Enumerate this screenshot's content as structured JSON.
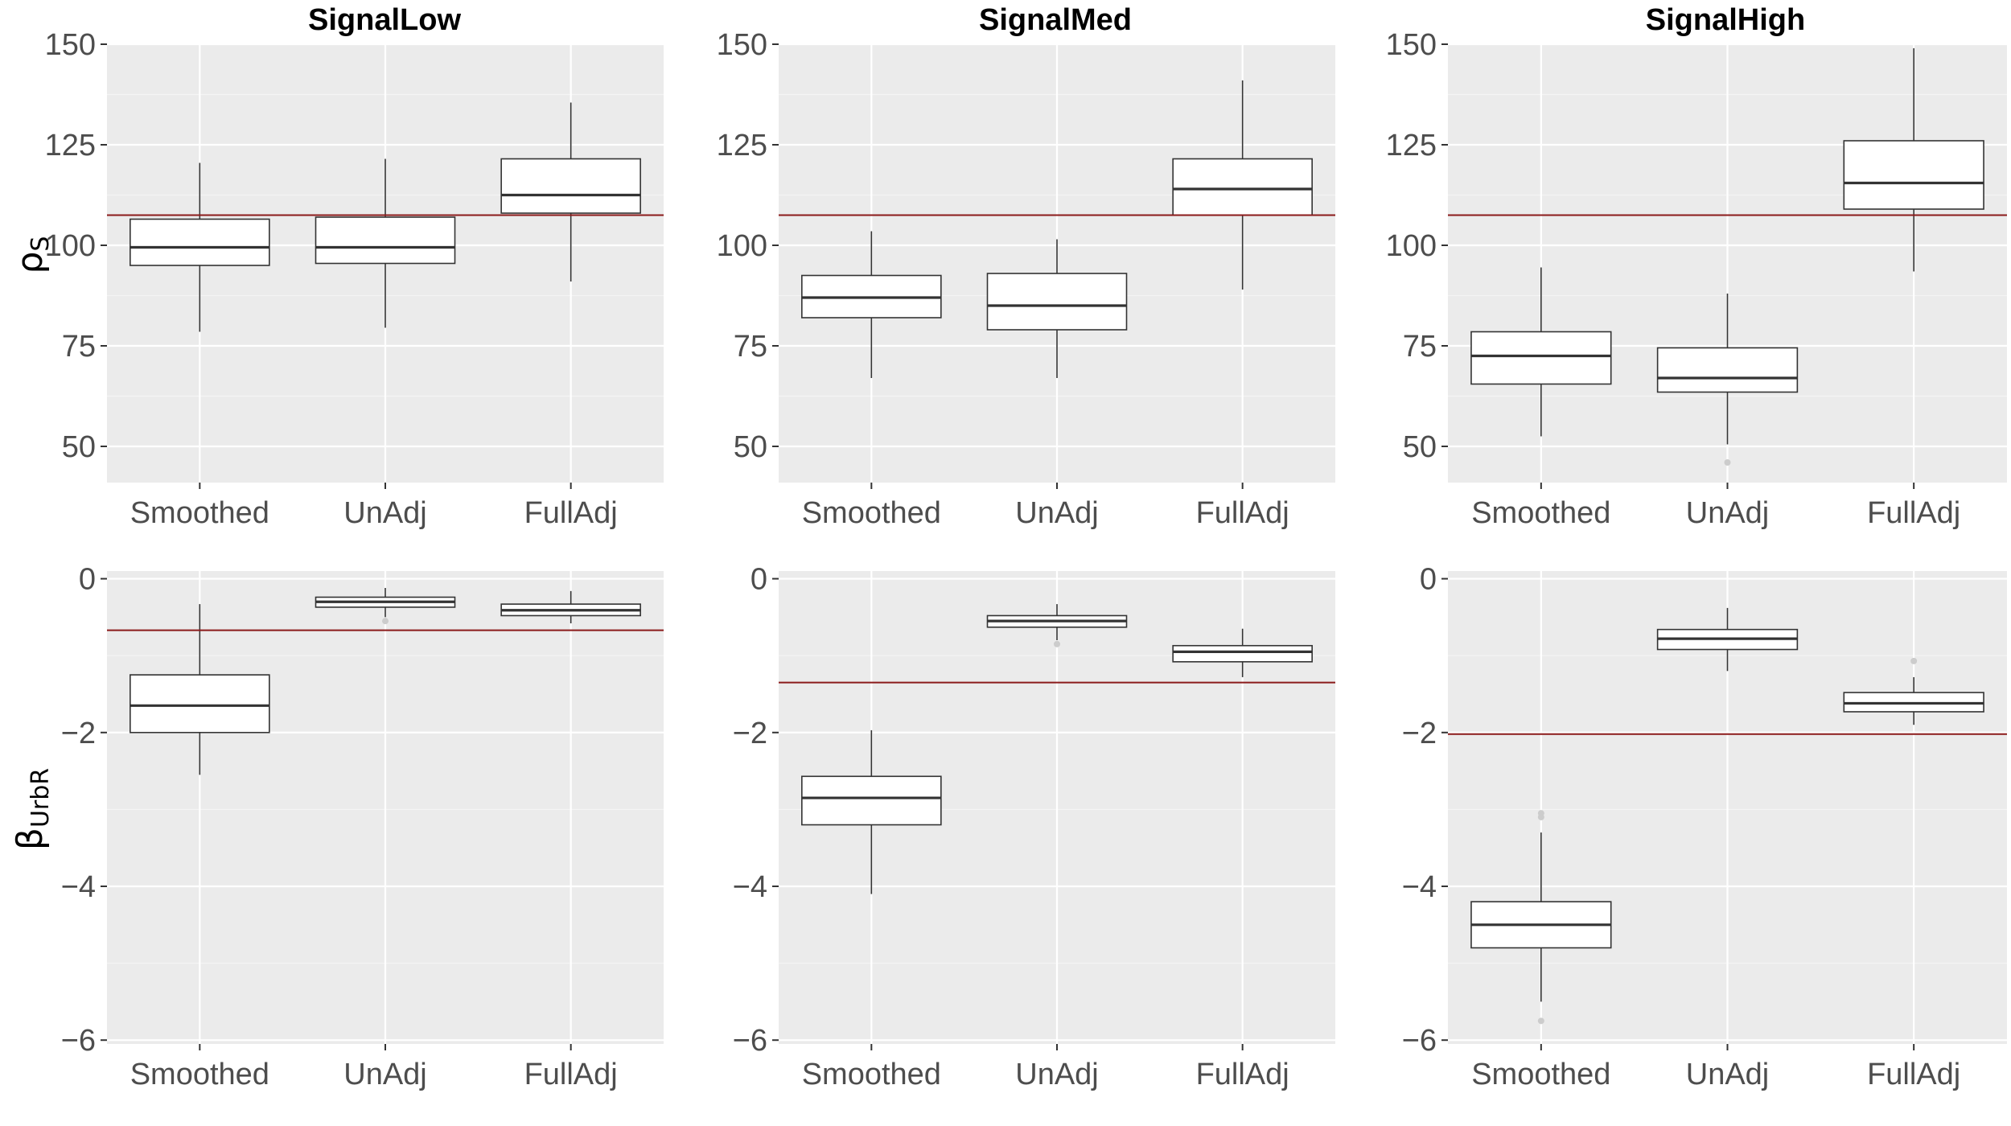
{
  "figure": {
    "row_labels": [
      {
        "greek": "ρ",
        "sub": "S"
      },
      {
        "greek": "β",
        "sub": "UrbR"
      }
    ],
    "column_titles": [
      "SignalLow",
      "SignalMed",
      "SignalHigh"
    ],
    "colors": {
      "panel_bg": "#ebebeb",
      "grid_major": "#ffffff",
      "grid_minor": "#f4f4f4",
      "reference_line": "#8b1a1a",
      "box_stroke": "#333333",
      "outlier": "#cccccc"
    }
  },
  "chart_data": [
    {
      "type": "boxplot",
      "title": "SignalLow",
      "ylabel": "ρS",
      "categories": [
        "Smoothed",
        "UnAdj",
        "FullAdj"
      ],
      "ylim": [
        41,
        150
      ],
      "yticks": [
        50,
        75,
        100,
        125,
        150
      ],
      "reference_line": 107.5,
      "boxes": [
        {
          "whisker_low": 78.5,
          "q1": 95,
          "median": 99.5,
          "q3": 106.5,
          "whisker_high": 120.5,
          "outliers": []
        },
        {
          "whisker_low": 79.5,
          "q1": 95.5,
          "median": 99.5,
          "q3": 107,
          "whisker_high": 121.5,
          "outliers": []
        },
        {
          "whisker_low": 91,
          "q1": 108,
          "median": 112.5,
          "q3": 121.5,
          "whisker_high": 135.5,
          "outliers": []
        }
      ]
    },
    {
      "type": "boxplot",
      "title": "SignalMed",
      "ylabel": "ρS",
      "categories": [
        "Smoothed",
        "UnAdj",
        "FullAdj"
      ],
      "ylim": [
        41,
        150
      ],
      "yticks": [
        50,
        75,
        100,
        125,
        150
      ],
      "reference_line": 107.5,
      "boxes": [
        {
          "whisker_low": 67,
          "q1": 82,
          "median": 87,
          "q3": 92.5,
          "whisker_high": 103.5,
          "outliers": []
        },
        {
          "whisker_low": 67,
          "q1": 79,
          "median": 85,
          "q3": 93,
          "whisker_high": 101.5,
          "outliers": []
        },
        {
          "whisker_low": 89,
          "q1": 107.5,
          "median": 114,
          "q3": 121.5,
          "whisker_high": 141,
          "outliers": []
        }
      ]
    },
    {
      "type": "boxplot",
      "title": "SignalHigh",
      "ylabel": "ρS",
      "categories": [
        "Smoothed",
        "UnAdj",
        "FullAdj"
      ],
      "ylim": [
        41,
        150
      ],
      "yticks": [
        50,
        75,
        100,
        125,
        150
      ],
      "reference_line": 107.5,
      "boxes": [
        {
          "whisker_low": 52.5,
          "q1": 65.5,
          "median": 72.5,
          "q3": 78.5,
          "whisker_high": 94.5,
          "outliers": []
        },
        {
          "whisker_low": 50.5,
          "q1": 63.5,
          "median": 67,
          "q3": 74.5,
          "whisker_high": 88,
          "outliers": [
            46
          ]
        },
        {
          "whisker_low": 93.5,
          "q1": 109,
          "median": 115.5,
          "q3": 126,
          "whisker_high": 149,
          "outliers": []
        }
      ]
    },
    {
      "type": "boxplot",
      "title": "SignalLow",
      "ylabel": "βUrbR",
      "categories": [
        "Smoothed",
        "UnAdj",
        "FullAdj"
      ],
      "ylim": [
        -6.05,
        0.1
      ],
      "yticks": [
        -6,
        -4,
        -2,
        0
      ],
      "reference_line": -0.67,
      "boxes": [
        {
          "whisker_low": -2.55,
          "q1": -2.0,
          "median": -1.65,
          "q3": -1.25,
          "whisker_high": -0.33,
          "outliers": []
        },
        {
          "whisker_low": -0.5,
          "q1": -0.37,
          "median": -0.3,
          "q3": -0.24,
          "whisker_high": -0.12,
          "outliers": [
            -0.55
          ]
        },
        {
          "whisker_low": -0.58,
          "q1": -0.48,
          "median": -0.41,
          "q3": -0.33,
          "whisker_high": -0.16,
          "outliers": []
        }
      ]
    },
    {
      "type": "boxplot",
      "title": "SignalMed",
      "ylabel": "βUrbR",
      "categories": [
        "Smoothed",
        "UnAdj",
        "FullAdj"
      ],
      "ylim": [
        -6.05,
        0.1
      ],
      "yticks": [
        -6,
        -4,
        -2,
        0
      ],
      "reference_line": -1.35,
      "boxes": [
        {
          "whisker_low": -4.1,
          "q1": -3.2,
          "median": -2.85,
          "q3": -2.57,
          "whisker_high": -1.97,
          "outliers": []
        },
        {
          "whisker_low": -0.8,
          "q1": -0.63,
          "median": -0.55,
          "q3": -0.48,
          "whisker_high": -0.33,
          "outliers": [
            -0.85
          ]
        },
        {
          "whisker_low": -1.28,
          "q1": -1.08,
          "median": -0.95,
          "q3": -0.87,
          "whisker_high": -0.65,
          "outliers": []
        }
      ]
    },
    {
      "type": "boxplot",
      "title": "SignalHigh",
      "ylabel": "βUrbR",
      "categories": [
        "Smoothed",
        "UnAdj",
        "FullAdj"
      ],
      "ylim": [
        -6.05,
        0.1
      ],
      "yticks": [
        -6,
        -4,
        -2,
        0
      ],
      "reference_line": -2.02,
      "boxes": [
        {
          "whisker_low": -5.5,
          "q1": -4.8,
          "median": -4.5,
          "q3": -4.2,
          "whisker_high": -3.3,
          "outliers": [
            -3.05,
            -3.1,
            -5.75
          ]
        },
        {
          "whisker_low": -1.2,
          "q1": -0.92,
          "median": -0.78,
          "q3": -0.66,
          "whisker_high": -0.38,
          "outliers": []
        },
        {
          "whisker_low": -1.9,
          "q1": -1.73,
          "median": -1.62,
          "q3": -1.48,
          "whisker_high": -1.28,
          "outliers": [
            -1.07
          ]
        }
      ]
    }
  ]
}
